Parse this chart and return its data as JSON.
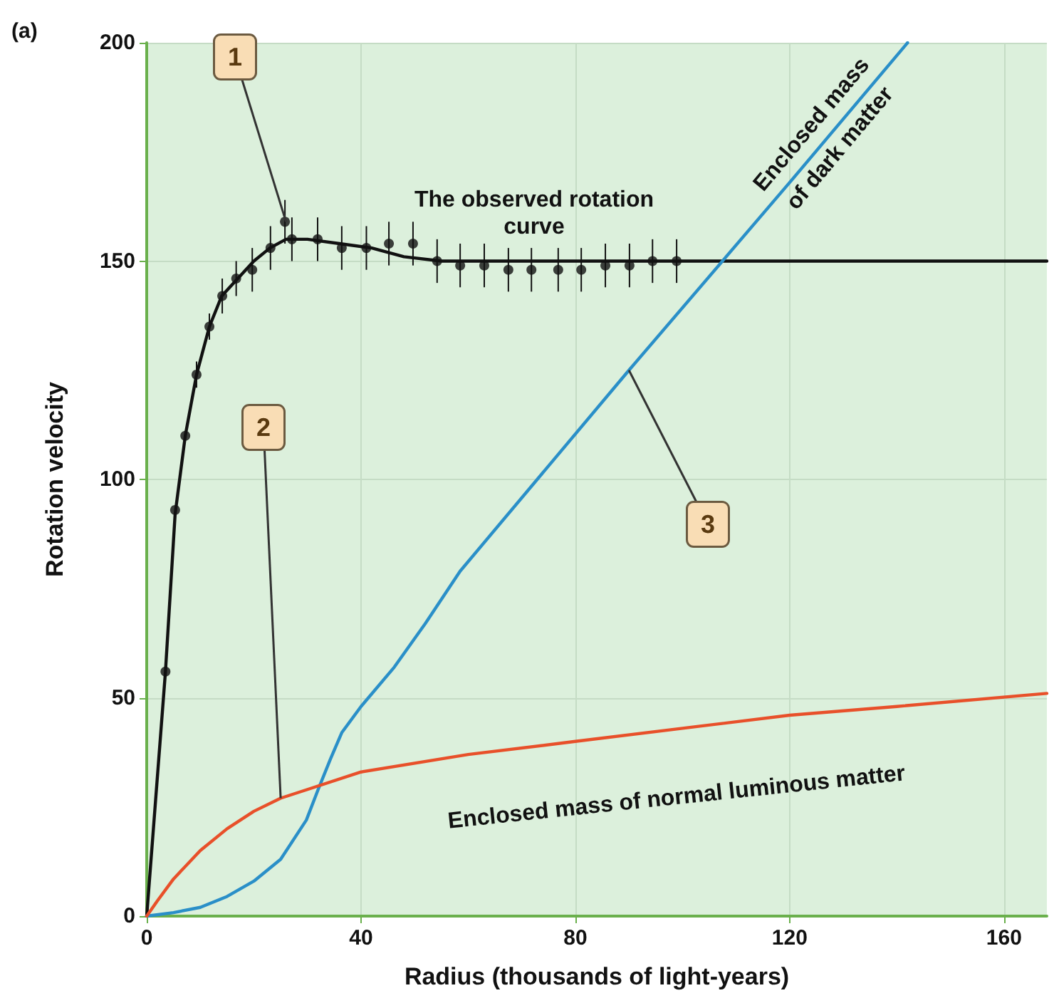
{
  "chart_data": {
    "type": "scatter",
    "xlabel": "Radius (thousands of light-years)",
    "ylabel": "Rotation velocity",
    "xlim": [
      0,
      168
    ],
    "ylim": [
      0,
      200
    ],
    "xticks": [
      0,
      40,
      80,
      120,
      160
    ],
    "yticks": [
      0,
      50,
      100,
      150,
      200
    ],
    "grid": true,
    "legend": false,
    "marker": "circle",
    "annotations": [
      "(a)",
      {
        "text": "1",
        "x": 26,
        "y": 159
      },
      {
        "text": "2",
        "x": 25,
        "y": 27
      },
      {
        "text": "3",
        "x": 90,
        "y": 125
      }
    ],
    "series": [
      {
        "color": "#111111",
        "x": [
          3.5,
          5.3,
          7.2,
          9.3,
          11.7,
          14.1,
          16.7,
          19.7,
          23.1,
          25.8,
          27.1,
          31.9,
          36.4,
          41,
          45.2,
          49.7,
          54.2,
          58.5,
          63,
          67.5,
          71.8,
          76.8,
          81.1,
          85.6,
          90.1,
          94.4,
          98.9
        ],
        "values": [
          56,
          93,
          110,
          124,
          135,
          142,
          146,
          148,
          153,
          159,
          155,
          155,
          153,
          153,
          154,
          154,
          150,
          149,
          149,
          148,
          148,
          148,
          148,
          149,
          149,
          150,
          150
        ],
        "errors": [
          null,
          null,
          null,
          3,
          3,
          4,
          4,
          5,
          5,
          5,
          5,
          5,
          5,
          5,
          5,
          5,
          5,
          5,
          5,
          5,
          5,
          5,
          5,
          5,
          5,
          5,
          5
        ]
      },
      {
        "type": "line",
        "name": "The observed rotation curve",
        "color": "#111111",
        "marker": "none",
        "x": [
          0,
          3.5,
          5.3,
          7.2,
          9.3,
          11.7,
          14,
          17,
          20,
          23,
          26,
          30,
          36,
          42,
          48,
          55,
          168
        ],
        "values": [
          0,
          56,
          92,
          110,
          124,
          135,
          142,
          146,
          150,
          153,
          155,
          155,
          154,
          153,
          151,
          150,
          150
        ]
      },
      {
        "type": "line",
        "name": "Enclosed mass of dark matter",
        "color": "#2a8fc8",
        "marker": "none",
        "x": [
          0,
          5,
          10,
          15,
          20,
          25,
          29.8,
          32,
          34.3,
          36.4,
          40,
          46.2,
          52,
          58.5,
          90,
          120,
          142
        ],
        "values": [
          0,
          0.8,
          2,
          4.5,
          8,
          13,
          22,
          29,
          36,
          42,
          48,
          57,
          67,
          79,
          125,
          168,
          200
        ]
      },
      {
        "type": "line",
        "name": "Enclosed mass of normal luminous matter",
        "color": "#e8502a",
        "marker": "none",
        "x": [
          0,
          2,
          5,
          10,
          15,
          20,
          25,
          30,
          40,
          60,
          80,
          100,
          120,
          140,
          168
        ],
        "values": [
          0,
          3.5,
          8.5,
          15,
          20,
          24,
          27,
          29,
          33,
          37,
          40,
          43,
          46,
          48,
          51
        ]
      }
    ]
  }
}
